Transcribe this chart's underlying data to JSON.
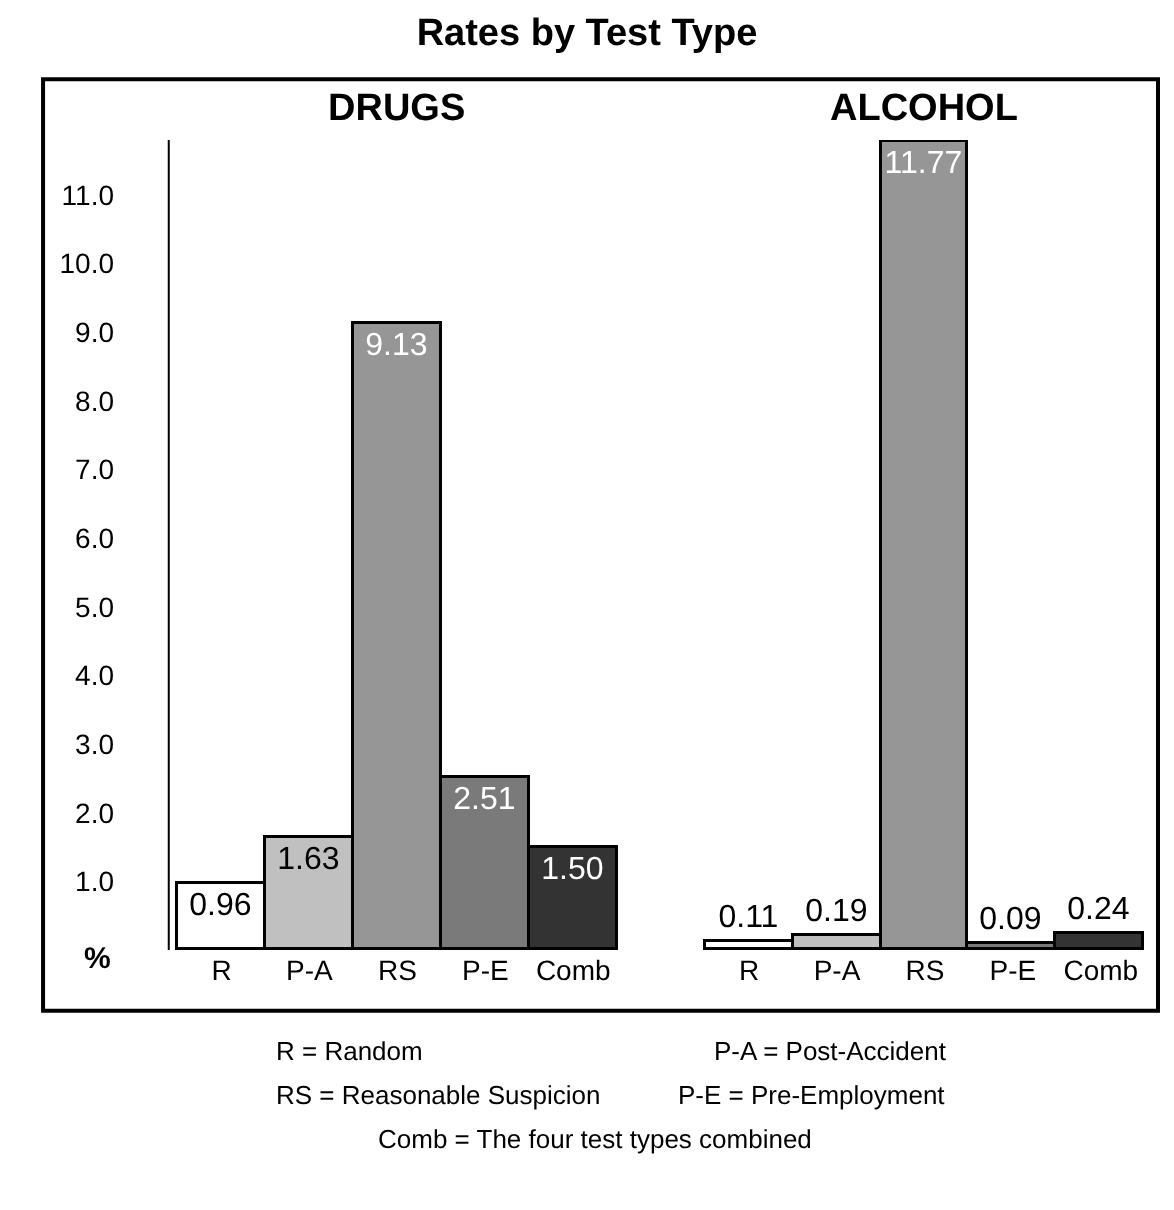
{
  "chart_data": {
    "type": "bar",
    "title": "Rates by Test Type",
    "ylabel": "%",
    "categories": [
      "R",
      "P-A",
      "RS",
      "P-E",
      "Comb",
      null,
      "R",
      "P-A",
      "RS",
      "P-E",
      "Comb"
    ],
    "values": [
      0.96,
      1.63,
      9.13,
      2.51,
      1.5,
      null,
      0.11,
      0.19,
      11.77,
      0.09,
      0.24
    ],
    "value_labels": [
      "0.96",
      "1.63",
      "9.13",
      "2.51",
      "1.50",
      null,
      "0.11",
      "0.19",
      "11.77",
      "0.09",
      "0.24"
    ],
    "colors": [
      "#ffffff",
      "#c0c0c0",
      "#969696",
      "#7a7a7a",
      "#333333",
      null,
      "#ffffff",
      "#c0c0c0",
      "#969696",
      "#7a7a7a",
      "#333333"
    ],
    "ylim": [
      0,
      11.8
    ],
    "yticks": [
      {
        "value": 1,
        "label": "1.0"
      },
      {
        "value": 2,
        "label": "2.0"
      },
      {
        "value": 3,
        "label": "3.0"
      },
      {
        "value": 4,
        "label": "4.0"
      },
      {
        "value": 5,
        "label": "5.0"
      },
      {
        "value": 6,
        "label": "6.0"
      },
      {
        "value": 7,
        "label": "7.0"
      },
      {
        "value": 8,
        "label": "8.0"
      },
      {
        "value": 9,
        "label": "9.0"
      },
      {
        "value": 10,
        "label": "10.0"
      },
      {
        "value": 11,
        "label": "11.0"
      }
    ],
    "legend": false,
    "annotations": [
      "DRUGS",
      "ALCOHOL",
      "R = Random",
      "P-A = Post-Accident",
      "RS = Reasonable Suspicion",
      "P-E = Pre-Employment",
      "Comb = The four test types combined"
    ]
  }
}
